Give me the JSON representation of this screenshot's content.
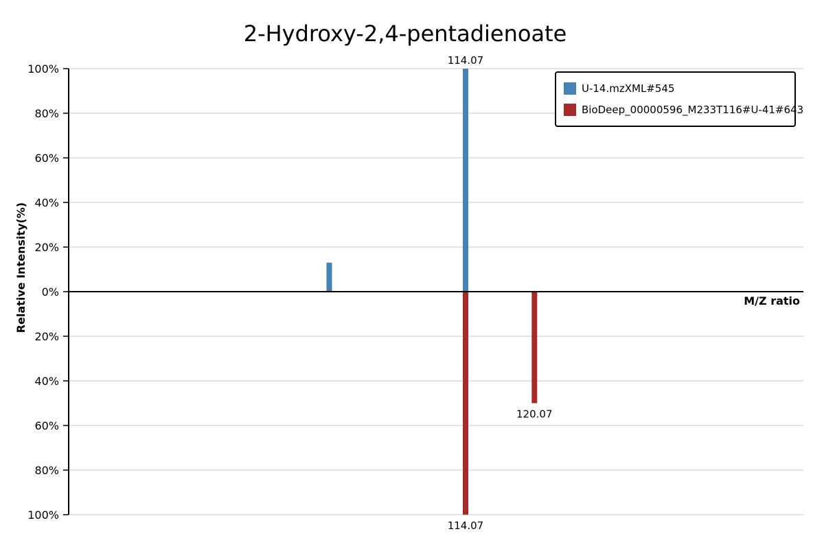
{
  "chart_data": {
    "type": "bar",
    "title": "2-Hydroxy-2,4-pentadienoate",
    "xlabel": "M/Z ratio",
    "ylabel": "Relative Intensity(%)",
    "xlim": [
      79.5,
      143.5
    ],
    "ylim_top": [
      0,
      100
    ],
    "ylim_bottom": [
      0,
      100
    ],
    "y_ticks_top": [
      "0%",
      "20%",
      "40%",
      "60%",
      "80%",
      "100%"
    ],
    "y_ticks_bottom": [
      "20%",
      "40%",
      "60%",
      "80%",
      "100%"
    ],
    "grid": true,
    "legend_position": "top-right",
    "series": [
      {
        "name": "U-14.mzXML#545",
        "color": "#4682b4",
        "direction": "up",
        "peaks": [
          {
            "mz": 102.2,
            "intensity": 13,
            "label": ""
          },
          {
            "mz": 114.07,
            "intensity": 100,
            "label": "114.07"
          }
        ]
      },
      {
        "name": "BioDeep_00000596_M233T116#U-41#643",
        "color": "#a52a2a",
        "direction": "down",
        "peaks": [
          {
            "mz": 114.07,
            "intensity": 100,
            "label": "114.07"
          },
          {
            "mz": 120.07,
            "intensity": 50,
            "label": "120.07"
          }
        ]
      }
    ]
  }
}
